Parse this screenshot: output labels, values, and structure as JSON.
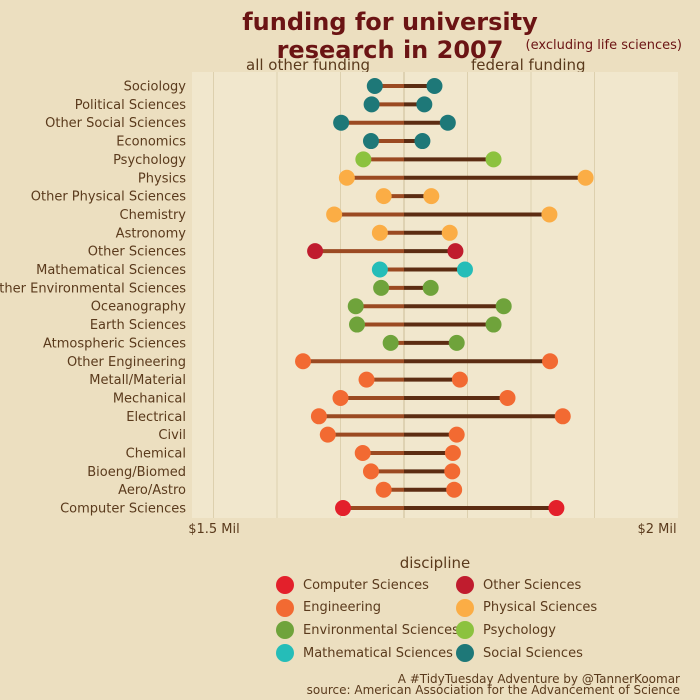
{
  "chart_data": {
    "type": "dumbbell",
    "title": "funding for university research in 2007",
    "subtitle": "(excluding life sciences)",
    "left_label": "all other funding",
    "right_label": "federal funding",
    "x_tick_labels": [
      "$1.5 Mil",
      "$2 Mil"
    ],
    "legend_title": "discipline",
    "categories": [
      "Sociology",
      "Political Sciences",
      "Other Social Sciences",
      "Economics",
      "Psychology",
      "Physics",
      "Other Physical Sciences",
      "Chemistry",
      "Astronomy",
      "Other Sciences",
      "Mathematical Sciences",
      "Other Environmental Sciences",
      "Oceanography",
      "Earth Sciences",
      "Atmospheric Sciences",
      "Other Engineering",
      "Metall/Material",
      "Mechanical",
      "Electrical",
      "Civil",
      "Chemical",
      "Bioeng/Biomed",
      "Aero/Astro",
      "Computer Sciences"
    ],
    "disciplines": [
      "Social Sciences",
      "Social Sciences",
      "Social Sciences",
      "Social Sciences",
      "Psychology",
      "Physical Sciences",
      "Physical Sciences",
      "Physical Sciences",
      "Physical Sciences",
      "Other Sciences",
      "Mathematical Sciences",
      "Environmental Sciences",
      "Environmental Sciences",
      "Environmental Sciences",
      "Environmental Sciences",
      "Engineering",
      "Engineering",
      "Engineering",
      "Engineering",
      "Engineering",
      "Engineering",
      "Engineering",
      "Engineering",
      "Computer Sciences"
    ],
    "other_funding": [
      0.46,
      0.51,
      0.99,
      0.52,
      0.64,
      0.9,
      0.32,
      1.1,
      0.38,
      1.4,
      0.38,
      0.36,
      0.76,
      0.74,
      0.21,
      1.59,
      0.59,
      1.0,
      1.34,
      1.2,
      0.65,
      0.52,
      0.32,
      0.96
    ],
    "federal_funding": [
      0.48,
      0.32,
      0.69,
      0.29,
      1.41,
      2.86,
      0.43,
      2.29,
      0.72,
      0.81,
      0.96,
      0.42,
      1.57,
      1.41,
      0.83,
      2.3,
      0.88,
      1.63,
      2.5,
      0.83,
      0.77,
      0.76,
      0.79,
      2.4
    ],
    "legend": [
      {
        "name": "Computer Sciences",
        "color": "#e3202b"
      },
      {
        "name": "Other Sciences",
        "color": "#c01c2e"
      },
      {
        "name": "Engineering",
        "color": "#f26a32"
      },
      {
        "name": "Physical Sciences",
        "color": "#fbad45"
      },
      {
        "name": "Environmental Sciences",
        "color": "#6fa33b"
      },
      {
        "name": "Psychology",
        "color": "#8cc23f"
      },
      {
        "name": "Mathematical Sciences",
        "color": "#25bdb8"
      },
      {
        "name": "Social Sciences",
        "color": "#1e7878"
      }
    ],
    "caption_1": "A #TidyTuesday Adventure by @TannerKoomar",
    "caption_2": "source: American Association for the Advancement of Science"
  }
}
